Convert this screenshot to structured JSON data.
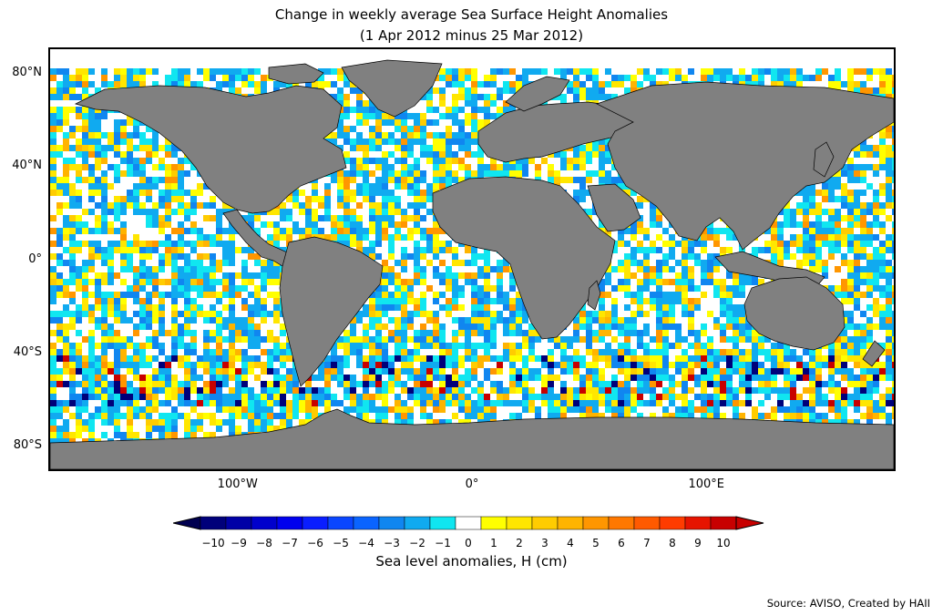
{
  "title": {
    "line1": "Change in weekly average Sea Surface Height Anomalies",
    "line2": "(1 Apr 2012 minus 25 Mar 2012)"
  },
  "map": {
    "projection": "plate-carree",
    "lon_range": [
      -180,
      180
    ],
    "lat_range": [
      -90,
      90
    ],
    "land_color": "#808080",
    "coast_color": "#000000",
    "lat_ticks": [
      {
        "value": 80,
        "label": "80°N"
      },
      {
        "value": 40,
        "label": "40°N"
      },
      {
        "value": 0,
        "label": "0°"
      },
      {
        "value": -40,
        "label": "40°S"
      },
      {
        "value": -80,
        "label": "80°S"
      }
    ],
    "lon_ticks": [
      {
        "value": -100,
        "label": "100°W"
      },
      {
        "value": 0,
        "label": "0°"
      },
      {
        "value": 100,
        "label": "100°E"
      }
    ]
  },
  "colorbar": {
    "label": "Sea level anomalies, H (cm)",
    "ticks": [
      "−10",
      "−9",
      "−8",
      "−7",
      "−6",
      "−5",
      "−4",
      "−3",
      "−2",
      "−1",
      "0",
      "1",
      "2",
      "3",
      "4",
      "5",
      "6",
      "7",
      "8",
      "9",
      "10"
    ],
    "under_color": "#000050",
    "over_color": "#c80000",
    "colors": [
      "#00007a",
      "#0000a6",
      "#0000cc",
      "#0000ee",
      "#0a1eff",
      "#0a46ff",
      "#0a64ff",
      "#1086f0",
      "#10aaf0",
      "#10e6f0",
      "#ffffff",
      "#ffff00",
      "#ffe600",
      "#ffcc00",
      "#ffb400",
      "#ff9600",
      "#ff7800",
      "#ff5a00",
      "#ff3c00",
      "#e61400",
      "#c80000"
    ]
  },
  "source": "Source: AVISO, Created by HAII"
}
